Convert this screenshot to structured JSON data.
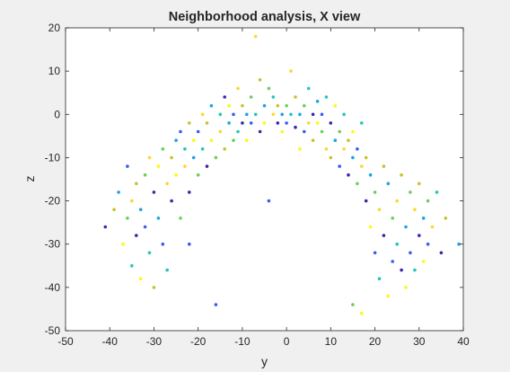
{
  "chart_data": {
    "type": "scatter",
    "title": "Neighborhood analysis, X view",
    "xlabel": "y",
    "ylabel": "z",
    "xlim": [
      -50,
      40
    ],
    "ylim": [
      -50,
      20
    ],
    "xticks": [
      -50,
      -40,
      -30,
      -20,
      -10,
      0,
      10,
      20,
      30,
      40
    ],
    "yticks": [
      -50,
      -40,
      -30,
      -20,
      -10,
      0,
      10,
      20
    ],
    "xtick_labels": [
      "-50",
      "-40",
      "-30",
      "-20",
      "-10",
      "0",
      "10",
      "20",
      "30",
      "40"
    ],
    "ytick_labels": [
      "-50",
      "-40",
      "-30",
      "-20",
      "-10",
      "0",
      "10",
      "20"
    ],
    "grid": false,
    "legend": "none",
    "marker": "filled dot",
    "palette": [
      "#3e26a8",
      "#3a5cf0",
      "#1fa2e0",
      "#20c7b8",
      "#6ccf5a",
      "#c7c329",
      "#ffd52e",
      "#f9fb0e"
    ],
    "background": "#f0f0f0",
    "plot_area_color": "#ffffff",
    "points": [
      [
        -41,
        -26
      ],
      [
        -39,
        -22
      ],
      [
        -38,
        -18
      ],
      [
        -37,
        -30
      ],
      [
        -36,
        -24
      ],
      [
        -36,
        -12
      ],
      [
        -35,
        -20
      ],
      [
        -35,
        -35
      ],
      [
        -34,
        -28
      ],
      [
        -34,
        -16
      ],
      [
        -33,
        -22
      ],
      [
        -33,
        -38
      ],
      [
        -32,
        -14
      ],
      [
        -32,
        -26
      ],
      [
        -31,
        -10
      ],
      [
        -31,
        -32
      ],
      [
        -30,
        -18
      ],
      [
        -30,
        -40
      ],
      [
        -29,
        -24
      ],
      [
        -29,
        -12
      ],
      [
        -28,
        -8
      ],
      [
        -28,
        -30
      ],
      [
        -27,
        -16
      ],
      [
        -27,
        -36
      ],
      [
        -26,
        -20
      ],
      [
        -26,
        -10
      ],
      [
        -25,
        -6
      ],
      [
        -25,
        -14
      ],
      [
        -24,
        -24
      ],
      [
        -24,
        -4
      ],
      [
        -23,
        -12
      ],
      [
        -23,
        -8
      ],
      [
        -22,
        -18
      ],
      [
        -22,
        -2
      ],
      [
        -21,
        -10
      ],
      [
        -21,
        -6
      ],
      [
        -20,
        -14
      ],
      [
        -20,
        -4
      ],
      [
        -19,
        0
      ],
      [
        -19,
        -8
      ],
      [
        -18,
        -12
      ],
      [
        -18,
        -2
      ],
      [
        -17,
        2
      ],
      [
        -17,
        -6
      ],
      [
        -16,
        -10
      ],
      [
        -16,
        -44
      ],
      [
        -15,
        -4
      ],
      [
        -15,
        0
      ],
      [
        -14,
        4
      ],
      [
        -14,
        -8
      ],
      [
        -13,
        -2
      ],
      [
        -13,
        2
      ],
      [
        -12,
        -6
      ],
      [
        -12,
        0
      ],
      [
        -11,
        6
      ],
      [
        -11,
        -4
      ],
      [
        -10,
        -2
      ],
      [
        -10,
        2
      ],
      [
        -9,
        0
      ],
      [
        -9,
        -6
      ],
      [
        -8,
        4
      ],
      [
        -8,
        -2
      ],
      [
        -7,
        18
      ],
      [
        -7,
        0
      ],
      [
        -6,
        -4
      ],
      [
        -6,
        8
      ],
      [
        -5,
        2
      ],
      [
        -5,
        -2
      ],
      [
        -4,
        6
      ],
      [
        -4,
        -20
      ],
      [
        -3,
        0
      ],
      [
        -3,
        4
      ],
      [
        -2,
        -2
      ],
      [
        -2,
        2
      ],
      [
        -1,
        0
      ],
      [
        -1,
        -4
      ],
      [
        0,
        2
      ],
      [
        0,
        -2
      ],
      [
        1,
        10
      ],
      [
        1,
        0
      ],
      [
        2,
        -3
      ],
      [
        2,
        4
      ],
      [
        3,
        0
      ],
      [
        3,
        -8
      ],
      [
        4,
        2
      ],
      [
        4,
        -4
      ],
      [
        5,
        -2
      ],
      [
        5,
        6
      ],
      [
        6,
        0
      ],
      [
        6,
        -6
      ],
      [
        7,
        3
      ],
      [
        7,
        -2
      ],
      [
        8,
        -4
      ],
      [
        8,
        0
      ],
      [
        9,
        -8
      ],
      [
        9,
        4
      ],
      [
        10,
        -2
      ],
      [
        10,
        -10
      ],
      [
        11,
        -6
      ],
      [
        11,
        2
      ],
      [
        12,
        -4
      ],
      [
        12,
        -12
      ],
      [
        13,
        -8
      ],
      [
        13,
        0
      ],
      [
        14,
        -14
      ],
      [
        14,
        -6
      ],
      [
        15,
        -10
      ],
      [
        15,
        -4
      ],
      [
        16,
        -16
      ],
      [
        16,
        -8
      ],
      [
        17,
        -12
      ],
      [
        17,
        -2
      ],
      [
        18,
        -20
      ],
      [
        18,
        -10
      ],
      [
        19,
        -14
      ],
      [
        19,
        -26
      ],
      [
        20,
        -18
      ],
      [
        20,
        -32
      ],
      [
        21,
        -22
      ],
      [
        21,
        -38
      ],
      [
        22,
        -28
      ],
      [
        22,
        -12
      ],
      [
        23,
        -16
      ],
      [
        23,
        -42
      ],
      [
        24,
        -24
      ],
      [
        24,
        -34
      ],
      [
        25,
        -20
      ],
      [
        25,
        -30
      ],
      [
        26,
        -36
      ],
      [
        26,
        -14
      ],
      [
        27,
        -26
      ],
      [
        27,
        -40
      ],
      [
        28,
        -18
      ],
      [
        28,
        -32
      ],
      [
        29,
        -22
      ],
      [
        29,
        -36
      ],
      [
        30,
        -28
      ],
      [
        30,
        -16
      ],
      [
        31,
        -24
      ],
      [
        31,
        -34
      ],
      [
        32,
        -20
      ],
      [
        32,
        -30
      ],
      [
        33,
        -26
      ],
      [
        34,
        -18
      ],
      [
        35,
        -32
      ],
      [
        36,
        -24
      ],
      [
        39,
        -30
      ],
      [
        17,
        -46
      ],
      [
        15,
        -44
      ],
      [
        -22,
        -30
      ]
    ]
  }
}
